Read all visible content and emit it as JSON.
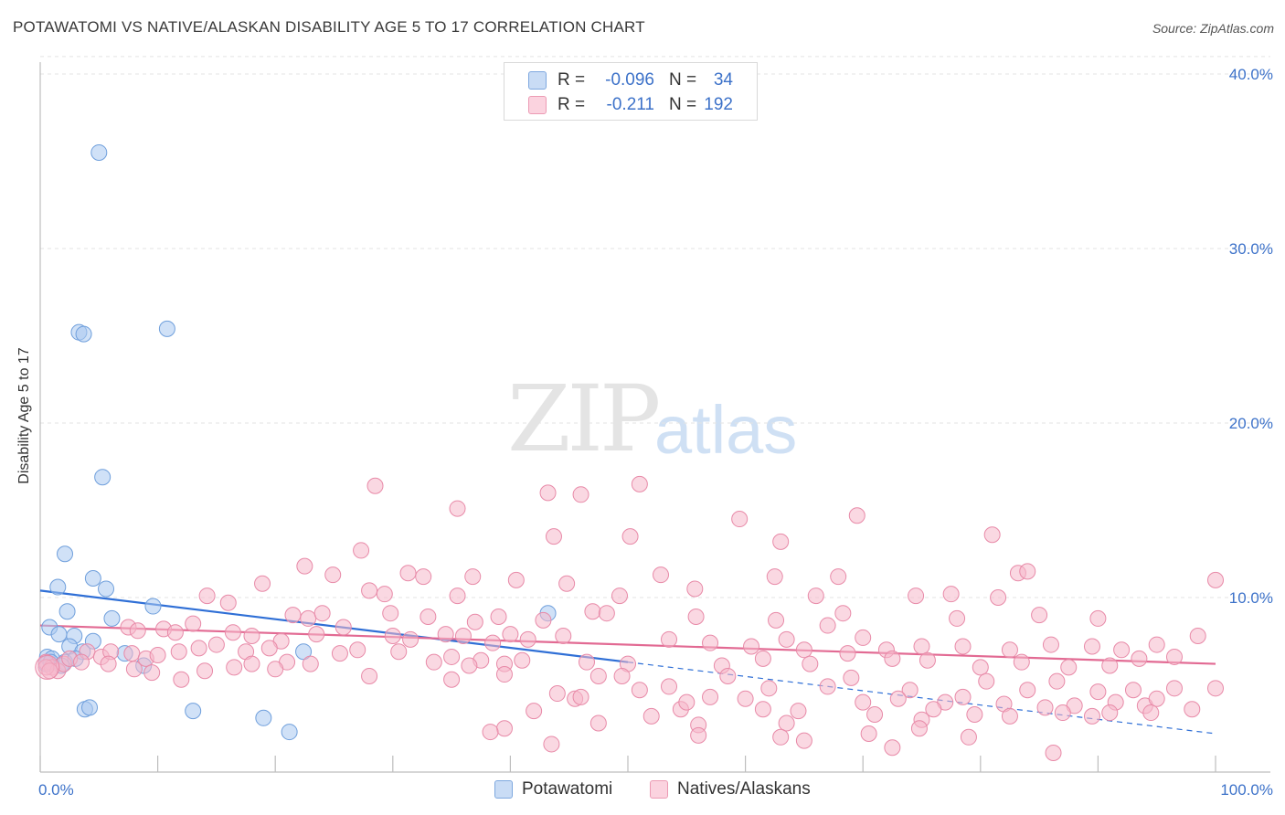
{
  "title": "POTAWATOMI VS NATIVE/ALASKAN DISABILITY AGE 5 TO 17 CORRELATION CHART",
  "source": "Source: ZipAtlas.com",
  "watermark": {
    "zip": "ZIP",
    "atlas": "atlas"
  },
  "legend_top": {
    "rows": [
      {
        "r_label": "R =",
        "r_value": "-0.096",
        "n_label": "N =",
        "n_value": "34",
        "color": "#a9c8f0"
      },
      {
        "r_label": "R =",
        "r_value": "-0.211",
        "n_label": "N =",
        "n_value": "192",
        "color": "#f6b8cb"
      }
    ]
  },
  "legend_bottom": {
    "items": [
      {
        "label": "Potawatomi",
        "color": "#a9c8f0"
      },
      {
        "label": "Natives/Alaskans",
        "color": "#f6b8cb"
      }
    ]
  },
  "chart_data": {
    "type": "scatter",
    "title": "POTAWATOMI VS NATIVE/ALASKAN DISABILITY AGE 5 TO 17 CORRELATION CHART",
    "xlabel": "",
    "ylabel": "Disability Age 5 to 17",
    "xlim": [
      0,
      100
    ],
    "ylim": [
      0,
      42
    ],
    "x_tick_labels": [
      "0.0%",
      "100.0%"
    ],
    "y_ticks": [
      10,
      20,
      30,
      40
    ],
    "y_tick_labels": [
      "10.0%",
      "20.0%",
      "30.0%",
      "40.0%"
    ],
    "grid": true,
    "legend_placement": "top-center",
    "series": [
      {
        "name": "Potawatomi",
        "color": "#a9c8f0",
        "stroke": "#6f9fdc",
        "trend_color": "#2f6fd6",
        "r": -0.096,
        "n": 34,
        "trend": {
          "x0": 0,
          "y0": 10.4,
          "x1": 50,
          "y1": 6.3,
          "solid_until": 50,
          "dash_to": 100,
          "dash_y": 2.2
        },
        "points": [
          [
            5.0,
            35.5
          ],
          [
            3.3,
            25.2
          ],
          [
            3.7,
            25.1
          ],
          [
            10.8,
            25.4
          ],
          [
            5.3,
            16.9
          ],
          [
            2.1,
            12.5
          ],
          [
            4.5,
            11.1
          ],
          [
            1.5,
            10.6
          ],
          [
            5.6,
            10.5
          ],
          [
            2.3,
            9.2
          ],
          [
            9.6,
            9.5
          ],
          [
            6.1,
            8.8
          ],
          [
            0.8,
            8.3
          ],
          [
            1.6,
            7.9
          ],
          [
            2.9,
            7.8
          ],
          [
            4.5,
            7.5
          ],
          [
            2.5,
            7.2
          ],
          [
            3.6,
            6.9
          ],
          [
            0.6,
            6.6
          ],
          [
            1.0,
            6.5
          ],
          [
            0.5,
            6.2
          ],
          [
            2.1,
            6.3
          ],
          [
            3.0,
            6.5
          ],
          [
            0.9,
            6.3
          ],
          [
            1.8,
            6.1
          ],
          [
            7.2,
            6.8
          ],
          [
            8.8,
            6.1
          ],
          [
            22.4,
            6.9
          ],
          [
            43.2,
            9.1
          ],
          [
            3.8,
            3.6
          ],
          [
            4.2,
            3.7
          ],
          [
            13.0,
            3.5
          ],
          [
            19.0,
            3.1
          ],
          [
            21.2,
            2.3
          ]
        ]
      },
      {
        "name": "Natives/Alaskans",
        "color": "#f6b8cb",
        "stroke": "#e88aa8",
        "trend_color": "#e26a93",
        "r": -0.211,
        "n": 192,
        "trend": {
          "x0": 0,
          "y0": 8.4,
          "x1": 100,
          "y1": 6.2
        },
        "points": [
          [
            28.5,
            16.4
          ],
          [
            35.5,
            15.1
          ],
          [
            43.2,
            16.0
          ],
          [
            46.0,
            15.9
          ],
          [
            51.0,
            16.5
          ],
          [
            59.5,
            14.5
          ],
          [
            63.0,
            13.2
          ],
          [
            69.5,
            14.7
          ],
          [
            81.0,
            13.6
          ],
          [
            43.7,
            13.5
          ],
          [
            50.2,
            13.5
          ],
          [
            27.3,
            12.7
          ],
          [
            22.5,
            11.8
          ],
          [
            24.9,
            11.3
          ],
          [
            31.3,
            11.4
          ],
          [
            32.6,
            11.2
          ],
          [
            36.8,
            11.2
          ],
          [
            40.5,
            11.0
          ],
          [
            44.8,
            10.8
          ],
          [
            52.8,
            11.3
          ],
          [
            62.5,
            11.2
          ],
          [
            67.9,
            11.2
          ],
          [
            83.2,
            11.4
          ],
          [
            84.0,
            11.5
          ],
          [
            100.0,
            11.0
          ],
          [
            18.9,
            10.8
          ],
          [
            28.0,
            10.4
          ],
          [
            29.3,
            10.2
          ],
          [
            35.5,
            10.1
          ],
          [
            49.3,
            10.1
          ],
          [
            55.7,
            10.5
          ],
          [
            66.0,
            10.1
          ],
          [
            74.5,
            10.1
          ],
          [
            77.5,
            10.2
          ],
          [
            81.5,
            10.0
          ],
          [
            14.2,
            10.1
          ],
          [
            16.0,
            9.7
          ],
          [
            21.5,
            9.0
          ],
          [
            22.8,
            8.8
          ],
          [
            24.0,
            9.1
          ],
          [
            29.8,
            9.1
          ],
          [
            33.0,
            8.9
          ],
          [
            37.0,
            8.6
          ],
          [
            39.0,
            8.9
          ],
          [
            42.8,
            8.7
          ],
          [
            47.0,
            9.2
          ],
          [
            48.2,
            9.1
          ],
          [
            55.8,
            8.9
          ],
          [
            62.6,
            8.7
          ],
          [
            67.0,
            8.4
          ],
          [
            68.3,
            9.1
          ],
          [
            78.0,
            8.8
          ],
          [
            85.0,
            9.0
          ],
          [
            90.0,
            8.8
          ],
          [
            7.5,
            8.3
          ],
          [
            8.3,
            8.1
          ],
          [
            10.5,
            8.2
          ],
          [
            11.5,
            8.0
          ],
          [
            13.0,
            8.5
          ],
          [
            16.4,
            8.0
          ],
          [
            18.0,
            7.8
          ],
          [
            20.5,
            7.5
          ],
          [
            23.5,
            7.9
          ],
          [
            25.8,
            8.3
          ],
          [
            30.0,
            7.8
          ],
          [
            31.5,
            7.6
          ],
          [
            34.5,
            7.9
          ],
          [
            36.0,
            7.8
          ],
          [
            38.5,
            7.4
          ],
          [
            40.0,
            7.9
          ],
          [
            41.5,
            7.6
          ],
          [
            44.5,
            7.8
          ],
          [
            53.5,
            7.6
          ],
          [
            57.0,
            7.4
          ],
          [
            60.5,
            7.2
          ],
          [
            63.5,
            7.6
          ],
          [
            65.0,
            7.0
          ],
          [
            70.0,
            7.7
          ],
          [
            72.0,
            7.0
          ],
          [
            75.0,
            7.2
          ],
          [
            78.5,
            7.2
          ],
          [
            82.5,
            7.0
          ],
          [
            86.0,
            7.3
          ],
          [
            89.5,
            7.2
          ],
          [
            92.0,
            7.0
          ],
          [
            95.0,
            7.3
          ],
          [
            98.5,
            7.8
          ],
          [
            4.0,
            6.9
          ],
          [
            5.2,
            6.6
          ],
          [
            6.0,
            6.9
          ],
          [
            7.8,
            6.8
          ],
          [
            9.0,
            6.5
          ],
          [
            10.0,
            6.7
          ],
          [
            11.8,
            6.9
          ],
          [
            13.5,
            7.1
          ],
          [
            15.0,
            7.3
          ],
          [
            17.5,
            6.9
          ],
          [
            19.5,
            7.1
          ],
          [
            21.0,
            6.3
          ],
          [
            23.0,
            6.2
          ],
          [
            25.5,
            6.8
          ],
          [
            27.0,
            7.0
          ],
          [
            30.5,
            6.9
          ],
          [
            33.5,
            6.3
          ],
          [
            35.0,
            6.6
          ],
          [
            37.5,
            6.4
          ],
          [
            39.5,
            6.2
          ],
          [
            41.0,
            6.4
          ],
          [
            46.5,
            6.3
          ],
          [
            50.0,
            6.2
          ],
          [
            58.0,
            6.1
          ],
          [
            61.5,
            6.5
          ],
          [
            65.5,
            6.2
          ],
          [
            68.7,
            6.8
          ],
          [
            72.5,
            6.5
          ],
          [
            75.5,
            6.4
          ],
          [
            80.0,
            6.0
          ],
          [
            83.5,
            6.3
          ],
          [
            87.5,
            6.0
          ],
          [
            91.0,
            6.1
          ],
          [
            93.5,
            6.5
          ],
          [
            96.5,
            6.6
          ],
          [
            0.5,
            6.3
          ],
          [
            1.0,
            6.0
          ],
          [
            1.5,
            5.8
          ],
          [
            2.0,
            6.2
          ],
          [
            2.5,
            6.5
          ],
          [
            3.5,
            6.3
          ],
          [
            5.8,
            6.2
          ],
          [
            8.0,
            5.9
          ],
          [
            9.5,
            5.7
          ],
          [
            12.0,
            5.3
          ],
          [
            14.0,
            5.8
          ],
          [
            16.5,
            6.0
          ],
          [
            18.0,
            6.2
          ],
          [
            20.0,
            5.9
          ],
          [
            28.0,
            5.5
          ],
          [
            35.0,
            5.3
          ],
          [
            36.5,
            6.1
          ],
          [
            39.5,
            5.6
          ],
          [
            44.0,
            4.5
          ],
          [
            47.5,
            5.5
          ],
          [
            49.5,
            5.5
          ],
          [
            51.0,
            4.7
          ],
          [
            53.5,
            4.9
          ],
          [
            57.0,
            4.3
          ],
          [
            58.5,
            5.5
          ],
          [
            62.0,
            4.8
          ],
          [
            67.0,
            4.9
          ],
          [
            69.0,
            5.4
          ],
          [
            74.0,
            4.7
          ],
          [
            77.0,
            4.0
          ],
          [
            80.5,
            5.2
          ],
          [
            84.0,
            4.7
          ],
          [
            86.5,
            5.2
          ],
          [
            90.0,
            4.6
          ],
          [
            93.0,
            4.7
          ],
          [
            96.5,
            4.8
          ],
          [
            100.0,
            4.8
          ],
          [
            45.5,
            4.2
          ],
          [
            46.0,
            4.3
          ],
          [
            54.5,
            3.6
          ],
          [
            55.0,
            4.0
          ],
          [
            60.0,
            4.2
          ],
          [
            61.5,
            3.6
          ],
          [
            64.5,
            3.5
          ],
          [
            70.0,
            4.0
          ],
          [
            73.0,
            4.2
          ],
          [
            76.0,
            3.6
          ],
          [
            78.5,
            4.3
          ],
          [
            82.0,
            3.9
          ],
          [
            85.5,
            3.7
          ],
          [
            88.0,
            3.8
          ],
          [
            91.5,
            4.0
          ],
          [
            94.0,
            3.8
          ],
          [
            95.0,
            4.2
          ],
          [
            98.0,
            3.6
          ],
          [
            42.0,
            3.5
          ],
          [
            52.0,
            3.2
          ],
          [
            56.0,
            2.7
          ],
          [
            63.5,
            2.8
          ],
          [
            71.0,
            3.3
          ],
          [
            75.0,
            3.0
          ],
          [
            79.5,
            3.3
          ],
          [
            82.5,
            3.2
          ],
          [
            87.0,
            3.4
          ],
          [
            89.5,
            3.2
          ],
          [
            91.0,
            3.4
          ],
          [
            94.5,
            3.4
          ],
          [
            39.5,
            2.5
          ],
          [
            47.5,
            2.8
          ],
          [
            56.0,
            2.1
          ],
          [
            63.0,
            2.0
          ],
          [
            70.5,
            2.2
          ],
          [
            74.8,
            2.5
          ],
          [
            79.0,
            2.0
          ],
          [
            38.3,
            2.3
          ],
          [
            43.5,
            1.6
          ],
          [
            65.0,
            1.8
          ],
          [
            72.5,
            1.4
          ],
          [
            86.2,
            1.1
          ],
          [
            0.5,
            6.0
          ],
          [
            0.8,
            5.8
          ]
        ]
      }
    ]
  }
}
